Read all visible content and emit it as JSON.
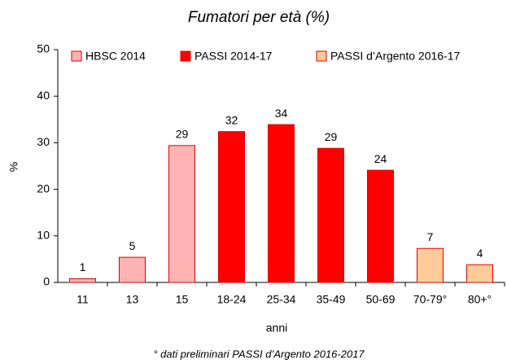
{
  "chart_data": {
    "type": "bar",
    "title": "Fumatori per età (%)",
    "x_label": "anni",
    "y_label": "%",
    "footnote": "° dati preliminari PASSI d’Argento 2016-2017",
    "categories": [
      "11",
      "13",
      "15",
      "18-24",
      "25-34",
      "35-49",
      "50-69",
      "70-79°",
      "80+°"
    ],
    "series": [
      {
        "name": "HBSC 2014",
        "color": "#ffb3b3",
        "values": [
          0.8,
          5.4,
          29.4,
          null,
          null,
          null,
          null,
          null,
          null
        ],
        "value_labels": [
          "1",
          "5",
          "29",
          null,
          null,
          null,
          null,
          null,
          null
        ]
      },
      {
        "name": "PASSI 2014-17",
        "color": "#ff0000",
        "values": [
          null,
          null,
          null,
          32.4,
          33.9,
          28.8,
          24.1,
          null,
          null
        ],
        "value_labels": [
          null,
          null,
          null,
          "32",
          "34",
          "29",
          "24",
          null,
          null
        ]
      },
      {
        "name": "PASSI d’Argento 2016-17",
        "color": "#ffcc99",
        "values": [
          null,
          null,
          null,
          null,
          null,
          null,
          null,
          7.3,
          3.8
        ],
        "value_labels": [
          null,
          null,
          null,
          null,
          null,
          null,
          null,
          "7",
          "4"
        ]
      }
    ],
    "ylim": [
      0,
      50
    ],
    "yticks": [
      0,
      10,
      20,
      30,
      40,
      50
    ],
    "grid": false
  }
}
